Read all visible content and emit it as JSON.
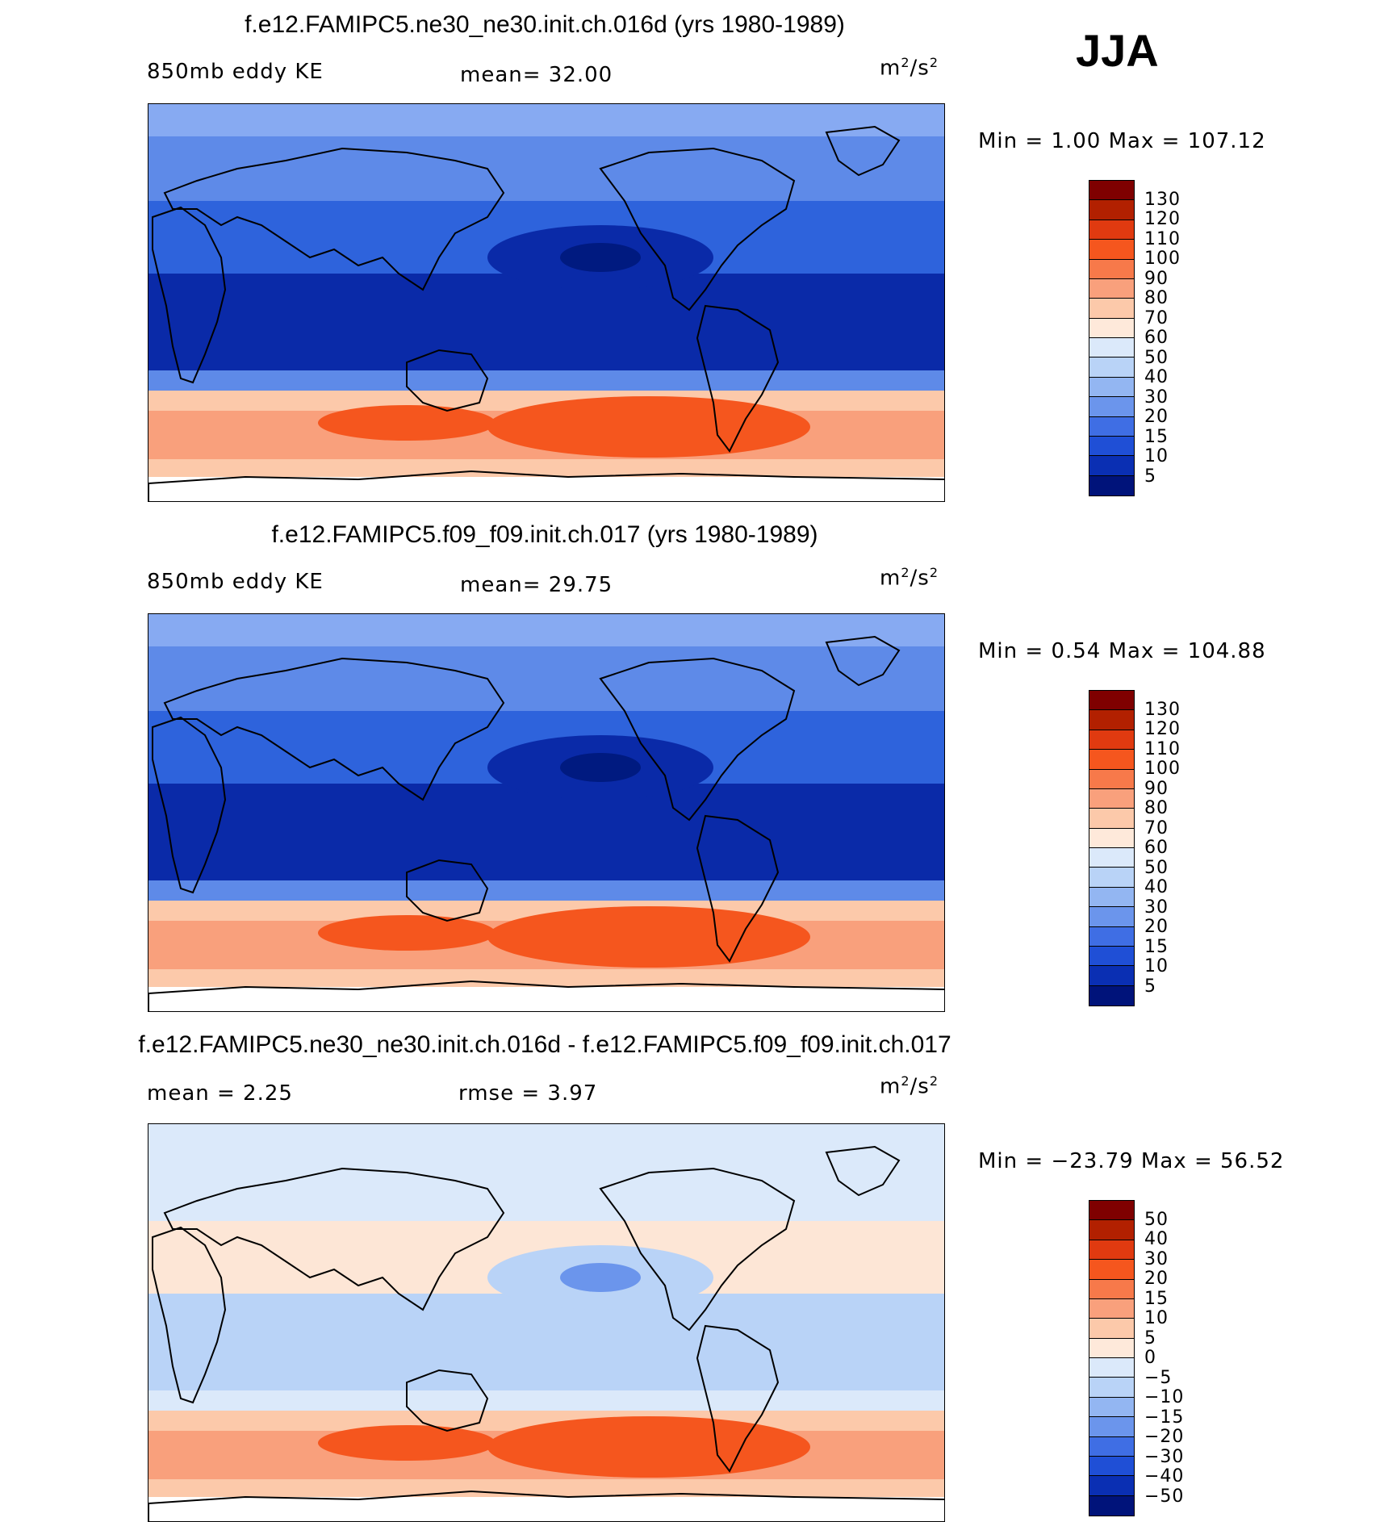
{
  "season": "JJA",
  "panels": [
    {
      "title": "f.e12.FAMIPC5.ne30_ne30.init.ch.016d (yrs 1980-1989)",
      "left_label": "850mb eddy KE",
      "mid_label": "mean=  32.00",
      "units_base": "m",
      "units_exp1": "2",
      "units_mid": "/s",
      "units_exp2": "2",
      "minmax": "Min =    1.00 Max = 107.12",
      "colorbar": {
        "levels": [
          "130",
          "120",
          "110",
          "100",
          "90",
          "80",
          "70",
          "60",
          "50",
          "40",
          "30",
          "20",
          "15",
          "10",
          "5"
        ],
        "colors": [
          "#7f0000",
          "#b22000",
          "#e03a10",
          "#f5561e",
          "#f7794a",
          "#f9a07c",
          "#fcc9aa",
          "#fee9da",
          "#dbe9fa",
          "#b9d3f7",
          "#93b6f2",
          "#6b95ec",
          "#3f6ee4",
          "#1f4fd6",
          "#0a2fb3",
          "#00137a"
        ]
      },
      "map_colors": {
        "background": "#2e63dc",
        "polar": "#87aaf2",
        "subpolar": "#5e8ae8",
        "deep": "#0a2aa8",
        "deepest": "#001a80",
        "warm1": "#fcc9aa",
        "warm2": "#f9a07c",
        "warm3": "#f5561e",
        "white": "#ffffff"
      }
    },
    {
      "title": "f.e12.FAMIPC5.f09_f09.init.ch.017 (yrs 1980-1989)",
      "left_label": "850mb eddy KE",
      "mid_label": "mean=  29.75",
      "units_base": "m",
      "units_exp1": "2",
      "units_mid": "/s",
      "units_exp2": "2",
      "minmax": "Min =    0.54 Max = 104.88",
      "colorbar": {
        "levels": [
          "130",
          "120",
          "110",
          "100",
          "90",
          "80",
          "70",
          "60",
          "50",
          "40",
          "30",
          "20",
          "15",
          "10",
          "5"
        ],
        "colors": [
          "#7f0000",
          "#b22000",
          "#e03a10",
          "#f5561e",
          "#f7794a",
          "#f9a07c",
          "#fcc9aa",
          "#fee9da",
          "#dbe9fa",
          "#b9d3f7",
          "#93b6f2",
          "#6b95ec",
          "#3f6ee4",
          "#1f4fd6",
          "#0a2fb3",
          "#00137a"
        ]
      },
      "map_colors": {
        "background": "#2e63dc",
        "polar": "#87aaf2",
        "subpolar": "#5e8ae8",
        "deep": "#0a2aa8",
        "deepest": "#001a80",
        "warm1": "#fcc9aa",
        "warm2": "#f9a07c",
        "warm3": "#f5561e",
        "white": "#ffffff"
      }
    },
    {
      "title": "f.e12.FAMIPC5.ne30_ne30.init.ch.016d - f.e12.FAMIPC5.f09_f09.init.ch.017",
      "left_label": "mean =    2.25",
      "mid_label": "rmse =    3.97",
      "units_base": "m",
      "units_exp1": "2",
      "units_mid": "/s",
      "units_exp2": "2",
      "minmax": "Min = −23.79 Max =  56.52",
      "colorbar": {
        "levels": [
          "50",
          "40",
          "30",
          "20",
          "15",
          "10",
          "5",
          "0",
          "−5",
          "−10",
          "−15",
          "−20",
          "−30",
          "−40",
          "−50"
        ],
        "colors": [
          "#7f0000",
          "#b22000",
          "#e03a10",
          "#f5561e",
          "#f7794a",
          "#f9a07c",
          "#fcc9aa",
          "#fee9da",
          "#dbe9fa",
          "#b9d3f7",
          "#93b6f2",
          "#6b95ec",
          "#3f6ee4",
          "#1f4fd6",
          "#0a2fb3",
          "#00137a"
        ]
      },
      "map_colors": {
        "background": "#fde6d6",
        "polar": "#dbe9fa",
        "subpolar": "#dbe9fa",
        "deep": "#b9d3f7",
        "deepest": "#6b95ec",
        "warm1": "#fcc9aa",
        "warm2": "#f9a07c",
        "warm3": "#f5561e",
        "white": "#ffffff"
      }
    }
  ]
}
